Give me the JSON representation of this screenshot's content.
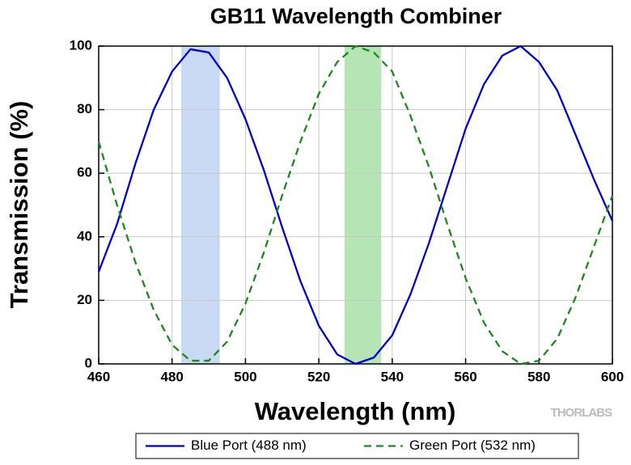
{
  "chart_data": {
    "type": "line",
    "title": "GB11 Wavelength Combiner",
    "x_label": "Wavelength (nm)",
    "y_label": "Transmission (%)",
    "watermark": "THORLABS",
    "x": [
      460,
      465,
      470,
      475,
      480,
      485,
      490,
      495,
      500,
      505,
      510,
      515,
      520,
      525,
      530,
      535,
      540,
      545,
      550,
      555,
      560,
      565,
      570,
      575,
      580,
      585,
      590,
      595,
      600
    ],
    "series": [
      {
        "name": "Blue Port (488 nm)",
        "color": "#0000cc",
        "dash": "solid",
        "values": [
          29,
          44,
          63,
          80,
          92,
          99,
          98,
          90,
          77,
          61,
          43,
          26,
          12,
          3,
          0,
          2,
          9,
          22,
          38,
          56,
          74,
          88,
          97,
          100,
          95,
          86,
          72,
          58,
          45
        ]
      },
      {
        "name": "Green Port (532 nm)",
        "color": "#1a8a1a",
        "dash": "dashed",
        "values": [
          70,
          50,
          32,
          17,
          6,
          1,
          1,
          7,
          19,
          35,
          53,
          70,
          85,
          95,
          100,
          98,
          92,
          78,
          62,
          44,
          27,
          13,
          4,
          0,
          1,
          8,
          21,
          37,
          53
        ]
      }
    ],
    "bands": [
      {
        "range": [
          482.5,
          493
        ],
        "color": "#c9d9f3"
      },
      {
        "range": [
          527,
          537
        ],
        "color": "#b5e4b5"
      }
    ],
    "xlim": [
      460,
      600
    ],
    "xticks": [
      460,
      480,
      500,
      520,
      540,
      560,
      580,
      600
    ],
    "ylim": [
      0,
      100
    ],
    "yticks": [
      0,
      20,
      40,
      60,
      80,
      100
    ],
    "grid": true,
    "legend": "bottom"
  }
}
